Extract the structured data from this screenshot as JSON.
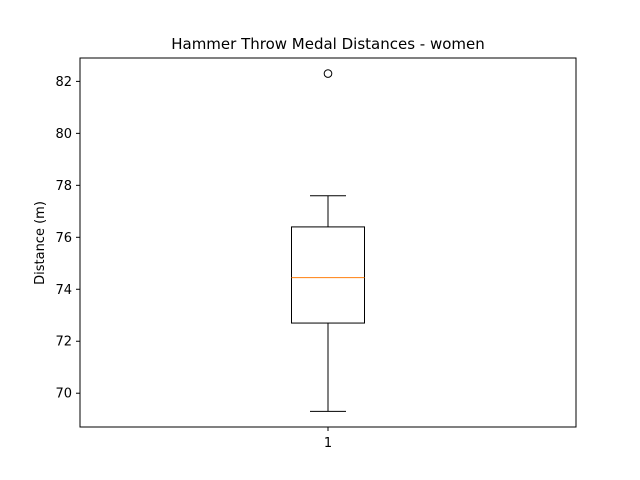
{
  "chart_data": {
    "type": "box",
    "title": "Hammer Throw Medal Distances - women",
    "xlabel": "",
    "ylabel": "Distance (m)",
    "categories": [
      "1"
    ],
    "ylim": [
      68.7,
      82.9
    ],
    "yticks": [
      70,
      72,
      74,
      76,
      78,
      80,
      82
    ],
    "ytick_labels": [
      "70",
      "72",
      "74",
      "76",
      "78",
      "80",
      "82"
    ],
    "xticks": [
      "1"
    ],
    "grid": false,
    "boxes": [
      {
        "name": "1",
        "whisker_low": 69.3,
        "q1": 72.7,
        "median": 74.45,
        "q3": 76.4,
        "whisker_high": 77.6,
        "outliers": [
          82.3
        ]
      }
    ],
    "colors": {
      "box": "#000000",
      "median": "#ff7f0e",
      "outlier": "#000000"
    }
  }
}
